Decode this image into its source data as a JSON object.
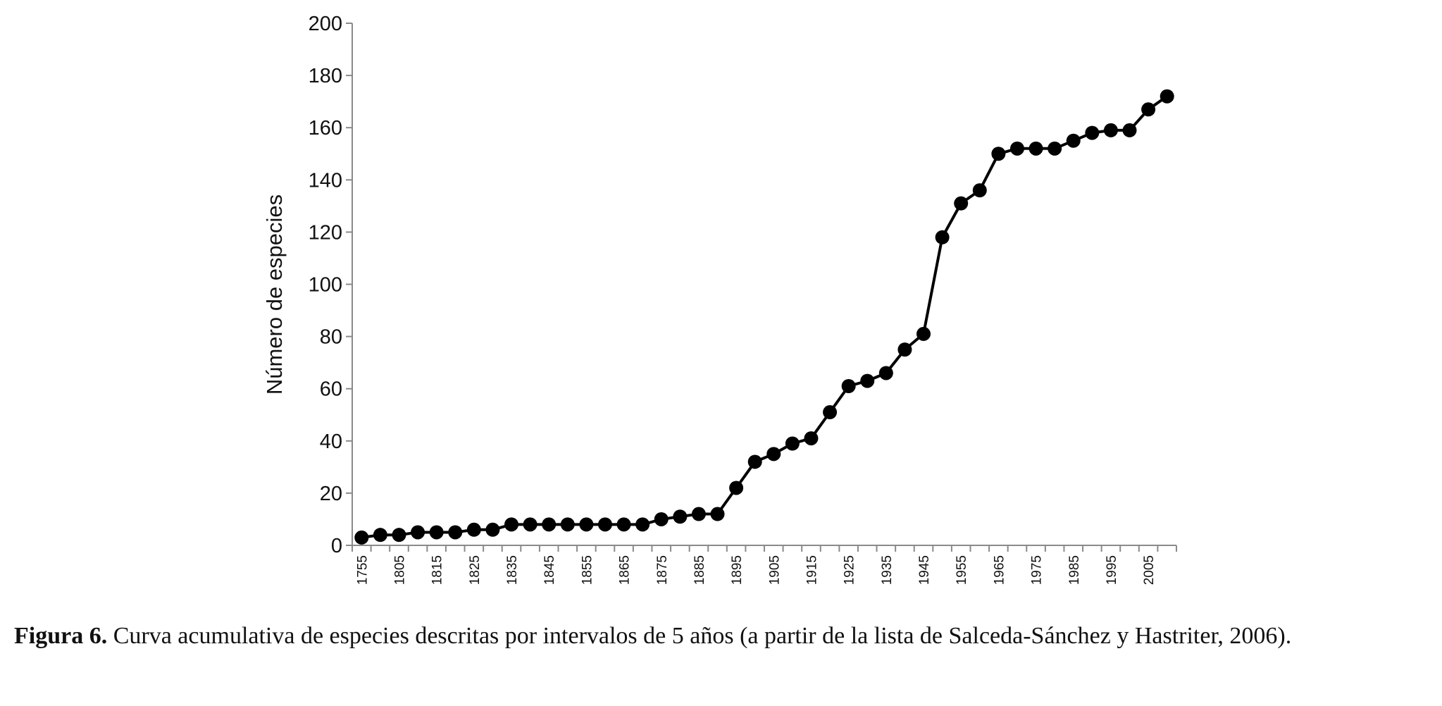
{
  "chart_data": {
    "type": "line",
    "title": "",
    "xlabel": "",
    "ylabel": "Número de especies",
    "ylim": [
      0,
      200
    ],
    "yticks": [
      "0",
      "20",
      "40",
      "60",
      "80",
      "100",
      "120",
      "140",
      "160",
      "180",
      "200"
    ],
    "xtick_labels": [
      "1755",
      "1805",
      "1815",
      "1825",
      "1835",
      "1845",
      "1855",
      "1865",
      "1875",
      "1885",
      "1895",
      "1905",
      "1915",
      "1925",
      "1935",
      "1945",
      "1955",
      "1965",
      "1975",
      "1985",
      "1995",
      "2005"
    ],
    "grid": false,
    "markers": "filled-circle",
    "series_color": "#000000",
    "series": [
      {
        "x": [
          "1755",
          "1800",
          "1805",
          "1810",
          "1815",
          "1820",
          "1825",
          "1830",
          "1835",
          "1840",
          "1845",
          "1850",
          "1855",
          "1860",
          "1865",
          "1870",
          "1875",
          "1880",
          "1885",
          "1890",
          "1895",
          "1900",
          "1905",
          "1910",
          "1915",
          "1920",
          "1925",
          "1930",
          "1935",
          "1940",
          "1945",
          "1950",
          "1955",
          "1960",
          "1965",
          "1970",
          "1975",
          "1980",
          "1985",
          "1990",
          "1995",
          "2000",
          "2005",
          "2010"
        ],
        "values": [
          3,
          4,
          4,
          5,
          5,
          5,
          6,
          6,
          8,
          8,
          8,
          8,
          8,
          8,
          8,
          8,
          10,
          11,
          12,
          12,
          22,
          32,
          35,
          39,
          41,
          51,
          61,
          63,
          66,
          75,
          81,
          118,
          131,
          136,
          150,
          152,
          152,
          152,
          155,
          158,
          159,
          159,
          167,
          172
        ]
      }
    ]
  },
  "caption": {
    "label": "Figura 6.",
    "text": " Curva acumulativa de especies descritas por intervalos de 5 años (a partir de la lista de Salceda-Sánchez y Hastriter, 2006)."
  }
}
